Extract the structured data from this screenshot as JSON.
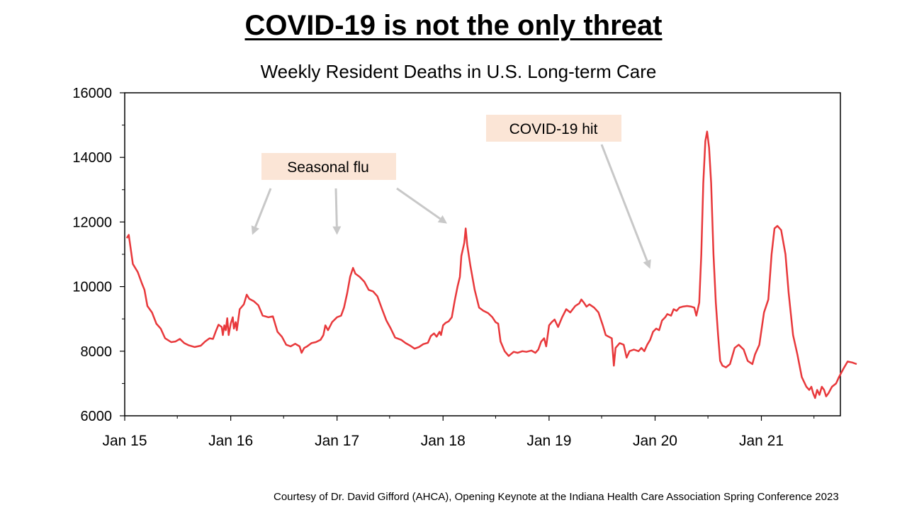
{
  "slide": {
    "headline": "COVID-19 is not the only threat",
    "credit": "Courtesy of Dr. David Gifford (AHCA), Opening Keynote at the Indiana Health Care Association Spring Conference 2023"
  },
  "chart_data": {
    "type": "line",
    "title": "Weekly Resident Deaths in U.S. Long-term Care",
    "xlabel": "",
    "ylabel": "",
    "ylim": [
      6000,
      16000
    ],
    "yticks": [
      6000,
      8000,
      10000,
      12000,
      14000,
      16000
    ],
    "xlim": [
      "2015-01-01",
      "2021-09-30"
    ],
    "xticks": [
      {
        "date": "2015-01-01",
        "label": "Jan 15"
      },
      {
        "date": "2016-01-01",
        "label": "Jan 16"
      },
      {
        "date": "2017-01-01",
        "label": "Jan 17"
      },
      {
        "date": "2018-01-01",
        "label": "Jan 18"
      },
      {
        "date": "2019-01-01",
        "label": "Jan 19"
      },
      {
        "date": "2020-01-01",
        "label": "Jan 20"
      },
      {
        "date": "2021-01-01",
        "label": "Jan 21"
      }
    ],
    "grid": false,
    "line_color": "#e8383b",
    "series": [
      {
        "name": "",
        "points": [
          [
            "2015-01-08",
            11500
          ],
          [
            "2015-01-15",
            11600
          ],
          [
            "2015-01-29",
            10700
          ],
          [
            "2015-02-15",
            10450
          ],
          [
            "2015-03-01",
            10100
          ],
          [
            "2015-03-10",
            9900
          ],
          [
            "2015-03-20",
            9400
          ],
          [
            "2015-04-05",
            9200
          ],
          [
            "2015-04-20",
            8850
          ],
          [
            "2015-05-05",
            8700
          ],
          [
            "2015-05-20",
            8400
          ],
          [
            "2015-06-10",
            8280
          ],
          [
            "2015-06-25",
            8300
          ],
          [
            "2015-07-10",
            8380
          ],
          [
            "2015-07-25",
            8250
          ],
          [
            "2015-08-10",
            8180
          ],
          [
            "2015-08-30",
            8130
          ],
          [
            "2015-09-20",
            8170
          ],
          [
            "2015-10-05",
            8300
          ],
          [
            "2015-10-20",
            8400
          ],
          [
            "2015-11-01",
            8380
          ],
          [
            "2015-11-10",
            8600
          ],
          [
            "2015-11-20",
            8820
          ],
          [
            "2015-12-01",
            8750
          ],
          [
            "2015-12-05",
            8500
          ],
          [
            "2015-12-10",
            8800
          ],
          [
            "2015-12-15",
            8650
          ],
          [
            "2015-12-20",
            9020
          ],
          [
            "2015-12-25",
            8500
          ],
          [
            "2016-01-01",
            8850
          ],
          [
            "2016-01-08",
            9050
          ],
          [
            "2016-01-12",
            8700
          ],
          [
            "2016-01-18",
            8900
          ],
          [
            "2016-01-22",
            8650
          ],
          [
            "2016-02-01",
            9300
          ],
          [
            "2016-02-15",
            9450
          ],
          [
            "2016-02-25",
            9750
          ],
          [
            "2016-03-05",
            9620
          ],
          [
            "2016-03-20",
            9550
          ],
          [
            "2016-04-05",
            9420
          ],
          [
            "2016-04-20",
            9100
          ],
          [
            "2016-05-10",
            9050
          ],
          [
            "2016-05-25",
            9080
          ],
          [
            "2016-06-10",
            8600
          ],
          [
            "2016-06-25",
            8450
          ],
          [
            "2016-07-10",
            8200
          ],
          [
            "2016-07-25",
            8150
          ],
          [
            "2016-08-10",
            8230
          ],
          [
            "2016-08-25",
            8150
          ],
          [
            "2016-09-01",
            7950
          ],
          [
            "2016-09-10",
            8100
          ],
          [
            "2016-09-20",
            8150
          ],
          [
            "2016-10-05",
            8250
          ],
          [
            "2016-10-20",
            8280
          ],
          [
            "2016-11-05",
            8350
          ],
          [
            "2016-11-15",
            8500
          ],
          [
            "2016-11-22",
            8800
          ],
          [
            "2016-12-01",
            8650
          ],
          [
            "2016-12-15",
            8900
          ],
          [
            "2017-01-01",
            9050
          ],
          [
            "2017-01-15",
            9100
          ],
          [
            "2017-01-25",
            9350
          ],
          [
            "2017-02-05",
            9800
          ],
          [
            "2017-02-15",
            10300
          ],
          [
            "2017-02-25",
            10580
          ],
          [
            "2017-03-05",
            10400
          ],
          [
            "2017-03-20",
            10300
          ],
          [
            "2017-04-05",
            10150
          ],
          [
            "2017-04-20",
            9900
          ],
          [
            "2017-05-05",
            9850
          ],
          [
            "2017-05-20",
            9700
          ],
          [
            "2017-06-05",
            9300
          ],
          [
            "2017-06-20",
            8950
          ],
          [
            "2017-07-05",
            8700
          ],
          [
            "2017-07-20",
            8420
          ],
          [
            "2017-08-10",
            8350
          ],
          [
            "2017-08-25",
            8250
          ],
          [
            "2017-09-10",
            8170
          ],
          [
            "2017-09-25",
            8080
          ],
          [
            "2017-10-10",
            8130
          ],
          [
            "2017-10-25",
            8220
          ],
          [
            "2017-11-10",
            8260
          ],
          [
            "2017-11-20",
            8470
          ],
          [
            "2017-12-01",
            8550
          ],
          [
            "2017-12-10",
            8450
          ],
          [
            "2017-12-20",
            8600
          ],
          [
            "2017-12-25",
            8500
          ],
          [
            "2018-01-01",
            8800
          ],
          [
            "2018-01-10",
            8880
          ],
          [
            "2018-01-20",
            8920
          ],
          [
            "2018-01-31",
            9050
          ],
          [
            "2018-02-10",
            9550
          ],
          [
            "2018-02-20",
            10000
          ],
          [
            "2018-02-28",
            10300
          ],
          [
            "2018-03-05",
            10950
          ],
          [
            "2018-03-15",
            11350
          ],
          [
            "2018-03-20",
            11800
          ],
          [
            "2018-03-25",
            11300
          ],
          [
            "2018-04-05",
            10650
          ],
          [
            "2018-04-20",
            9900
          ],
          [
            "2018-05-05",
            9350
          ],
          [
            "2018-05-20",
            9250
          ],
          [
            "2018-06-05",
            9180
          ],
          [
            "2018-06-20",
            9050
          ],
          [
            "2018-07-01",
            8900
          ],
          [
            "2018-07-10",
            8850
          ],
          [
            "2018-07-18",
            8300
          ],
          [
            "2018-08-01",
            8000
          ],
          [
            "2018-08-15",
            7850
          ],
          [
            "2018-09-01",
            7980
          ],
          [
            "2018-09-15",
            7950
          ],
          [
            "2018-10-01",
            8000
          ],
          [
            "2018-10-15",
            7980
          ],
          [
            "2018-11-01",
            8020
          ],
          [
            "2018-11-15",
            7950
          ],
          [
            "2018-11-25",
            8050
          ],
          [
            "2018-12-05",
            8300
          ],
          [
            "2018-12-15",
            8400
          ],
          [
            "2018-12-22",
            8150
          ],
          [
            "2019-01-01",
            8800
          ],
          [
            "2019-01-10",
            8900
          ],
          [
            "2019-01-20",
            8980
          ],
          [
            "2019-02-01",
            8750
          ],
          [
            "2019-02-15",
            9050
          ],
          [
            "2019-03-01",
            9300
          ],
          [
            "2019-03-15",
            9200
          ],
          [
            "2019-04-01",
            9400
          ],
          [
            "2019-04-15",
            9480
          ],
          [
            "2019-04-22",
            9600
          ],
          [
            "2019-05-01",
            9500
          ],
          [
            "2019-05-10",
            9380
          ],
          [
            "2019-05-20",
            9450
          ],
          [
            "2019-06-05",
            9350
          ],
          [
            "2019-06-20",
            9200
          ],
          [
            "2019-07-05",
            8800
          ],
          [
            "2019-07-15",
            8500
          ],
          [
            "2019-07-25",
            8450
          ],
          [
            "2019-08-05",
            8400
          ],
          [
            "2019-08-12",
            7550
          ],
          [
            "2019-08-18",
            8100
          ],
          [
            "2019-09-01",
            8250
          ],
          [
            "2019-09-15",
            8200
          ],
          [
            "2019-09-25",
            7800
          ],
          [
            "2019-10-05",
            8000
          ],
          [
            "2019-10-20",
            8050
          ],
          [
            "2019-11-05",
            8000
          ],
          [
            "2019-11-15",
            8100
          ],
          [
            "2019-11-25",
            8000
          ],
          [
            "2019-12-05",
            8200
          ],
          [
            "2019-12-15",
            8350
          ],
          [
            "2019-12-25",
            8600
          ],
          [
            "2020-01-05",
            8700
          ],
          [
            "2020-01-15",
            8650
          ],
          [
            "2020-01-25",
            8950
          ],
          [
            "2020-02-05",
            9050
          ],
          [
            "2020-02-12",
            9150
          ],
          [
            "2020-02-25",
            9100
          ],
          [
            "2020-03-05",
            9300
          ],
          [
            "2020-03-15",
            9250
          ],
          [
            "2020-03-25",
            9350
          ],
          [
            "2020-04-05",
            9380
          ],
          [
            "2020-04-20",
            9400
          ],
          [
            "2020-05-05",
            9380
          ],
          [
            "2020-05-15",
            9350
          ],
          [
            "2020-05-22",
            9100
          ],
          [
            "2020-06-01",
            9500
          ],
          [
            "2020-06-08",
            11000
          ],
          [
            "2020-06-15",
            13200
          ],
          [
            "2020-06-22",
            14500
          ],
          [
            "2020-06-28",
            14800
          ],
          [
            "2020-07-05",
            14300
          ],
          [
            "2020-07-12",
            13200
          ],
          [
            "2020-07-20",
            11000
          ],
          [
            "2020-07-28",
            9500
          ],
          [
            "2020-08-05",
            8500
          ],
          [
            "2020-08-12",
            7700
          ],
          [
            "2020-08-20",
            7550
          ],
          [
            "2020-09-01",
            7500
          ],
          [
            "2020-09-15",
            7600
          ],
          [
            "2020-10-01",
            8100
          ],
          [
            "2020-10-15",
            8200
          ],
          [
            "2020-11-01",
            8050
          ],
          [
            "2020-11-15",
            7700
          ],
          [
            "2020-12-01",
            7600
          ],
          [
            "2020-12-10",
            7900
          ],
          [
            "2020-12-25",
            8200
          ],
          [
            "2021-01-10",
            9200
          ],
          [
            "2021-01-25",
            9600
          ],
          [
            "2021-02-05",
            11000
          ],
          [
            "2021-02-15",
            11800
          ],
          [
            "2021-02-25",
            11880
          ],
          [
            "2021-03-10",
            11750
          ],
          [
            "2021-03-25",
            11000
          ],
          [
            "2021-04-05",
            9800
          ],
          [
            "2021-04-20",
            8500
          ],
          [
            "2021-05-05",
            7900
          ],
          [
            "2021-05-20",
            7200
          ],
          [
            "2021-06-05",
            6900
          ],
          [
            "2021-06-15",
            6800
          ],
          [
            "2021-06-22",
            6900
          ],
          [
            "2021-06-28",
            6700
          ],
          [
            "2021-07-05",
            6550
          ],
          [
            "2021-07-12",
            6800
          ],
          [
            "2021-07-20",
            6650
          ],
          [
            "2021-07-28",
            6900
          ],
          [
            "2021-08-05",
            6800
          ],
          [
            "2021-08-12",
            6600
          ],
          [
            "2021-08-20",
            6700
          ],
          [
            "2021-09-01",
            6900
          ],
          [
            "2021-09-15",
            7000
          ],
          [
            "2021-09-25",
            7200
          ],
          [
            "2021-10-10",
            7450
          ],
          [
            "2021-10-25",
            7680
          ],
          [
            "2021-11-10",
            7650
          ],
          [
            "2021-11-25",
            7600
          ]
        ]
      }
    ],
    "annotations": [
      {
        "id": "flu",
        "text": "Seasonal flu",
        "box_color": "#fbe5d6",
        "arrow_color": "#c8c8c8",
        "arrow_targets": [
          [
            "2016-03-15",
            11600
          ],
          [
            "2017-01-01",
            11600
          ],
          [
            "2018-01-15",
            11950
          ]
        ]
      },
      {
        "id": "covid",
        "text": "COVID-19 hit",
        "box_color": "#fbe5d6",
        "arrow_color": "#c8c8c8",
        "arrow_targets": [
          [
            "2019-12-15",
            10550
          ]
        ]
      }
    ]
  }
}
